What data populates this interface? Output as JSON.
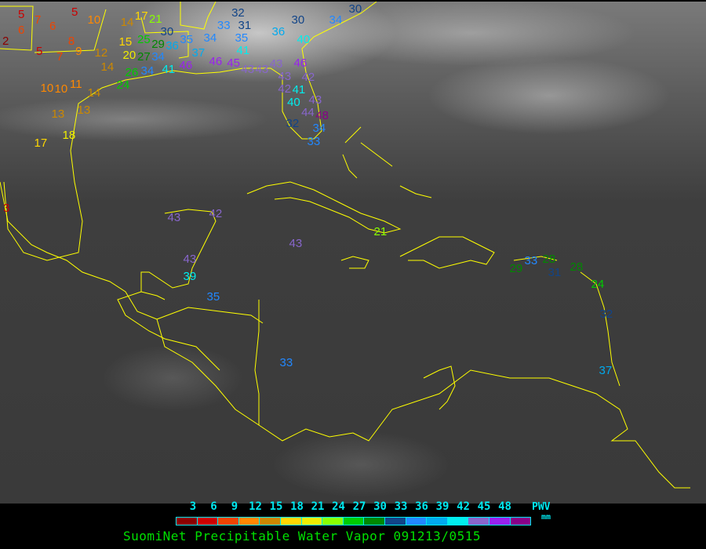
{
  "legend": {
    "ticks": [
      "3",
      "6",
      "9",
      "12",
      "15",
      "18",
      "21",
      "24",
      "27",
      "30",
      "33",
      "36",
      "39",
      "42",
      "45",
      "48"
    ],
    "colors": [
      "#8b0000",
      "#cc0000",
      "#ee4400",
      "#ff8800",
      "#cc8800",
      "#ffd700",
      "#eeee00",
      "#88ff00",
      "#00cc00",
      "#008800",
      "#114488",
      "#2288ff",
      "#00aaee",
      "#00eeee",
      "#8866cc",
      "#9922ee",
      "#880088"
    ],
    "label": "PWV",
    "unit": "mm"
  },
  "caption": "SuomiNet Precipitable Water Vapor 091213/0515",
  "map": {
    "coastline_color": "#ffff00",
    "station_values": [
      5,
      5,
      7,
      6,
      6,
      2,
      8,
      5,
      7,
      9,
      12,
      14,
      10,
      15,
      20,
      25,
      29,
      30,
      27,
      34,
      26,
      34,
      24,
      10,
      10,
      11,
      14,
      13,
      13,
      18,
      17,
      14,
      17,
      21,
      3,
      35,
      36,
      41,
      46,
      37,
      34,
      33,
      32,
      31,
      35,
      41,
      46,
      45,
      43,
      43,
      43,
      43,
      42,
      42,
      41,
      40,
      43,
      44,
      48,
      32,
      34,
      33,
      30,
      36,
      40,
      34,
      46,
      30,
      43,
      42,
      43,
      39,
      35,
      43,
      21,
      33,
      29,
      33,
      28,
      31,
      28,
      24,
      32,
      37
    ]
  }
}
